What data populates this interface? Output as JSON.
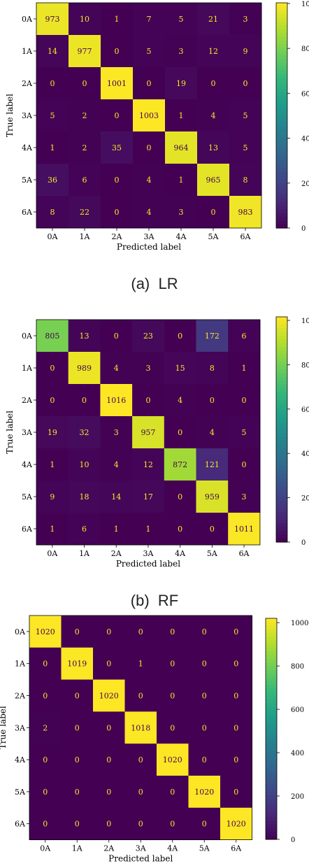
{
  "captions": [
    "(a)  LR",
    "(b)  RF",
    ""
  ],
  "colorscale": [
    "#440154",
    "#482878",
    "#3e4989",
    "#31688e",
    "#26828e",
    "#1f9e89",
    "#35b779",
    "#6ece58",
    "#b5de2b",
    "#fde725"
  ],
  "text_colors": {
    "on_dark": "#fde725",
    "on_light": "#440154"
  },
  "chart_data": [
    {
      "type": "heatmap",
      "title": "",
      "xlabel": "Predicted label",
      "ylabel": "True label",
      "x_labels": [
        "0A",
        "1A",
        "2A",
        "3A",
        "4A",
        "5A",
        "6A"
      ],
      "y_labels": [
        "0A",
        "1A",
        "2A",
        "3A",
        "4A",
        "5A",
        "6A"
      ],
      "matrix": [
        [
          973,
          10,
          1,
          7,
          5,
          21,
          3
        ],
        [
          14,
          977,
          0,
          5,
          3,
          12,
          9
        ],
        [
          0,
          0,
          1001,
          0,
          19,
          0,
          0
        ],
        [
          5,
          2,
          0,
          1003,
          1,
          4,
          5
        ],
        [
          1,
          2,
          35,
          0,
          964,
          13,
          5
        ],
        [
          36,
          6,
          0,
          4,
          1,
          965,
          8
        ],
        [
          8,
          22,
          0,
          4,
          3,
          0,
          983
        ]
      ],
      "vmax": 1003,
      "colorbar_ticks": [
        {
          "label": "0",
          "value": 0
        },
        {
          "label": "200",
          "value": 200
        },
        {
          "label": "400",
          "value": 400
        },
        {
          "label": "600",
          "value": 600
        },
        {
          "label": "800",
          "value": 800
        },
        {
          "label": "1000",
          "value": 1000
        }
      ]
    },
    {
      "type": "heatmap",
      "title": "",
      "xlabel": "Predicted label",
      "ylabel": "True label",
      "x_labels": [
        "0A",
        "1A",
        "2A",
        "3A",
        "4A",
        "5A",
        "6A"
      ],
      "y_labels": [
        "0A",
        "1A",
        "2A",
        "3A",
        "4A",
        "5A",
        "6A"
      ],
      "matrix": [
        [
          805,
          13,
          0,
          23,
          0,
          172,
          6
        ],
        [
          0,
          989,
          4,
          3,
          15,
          8,
          1
        ],
        [
          0,
          0,
          1016,
          0,
          4,
          0,
          0
        ],
        [
          19,
          32,
          3,
          957,
          0,
          4,
          5
        ],
        [
          1,
          10,
          4,
          12,
          872,
          121,
          0
        ],
        [
          9,
          18,
          14,
          17,
          0,
          959,
          3
        ],
        [
          1,
          6,
          1,
          1,
          0,
          0,
          1011
        ]
      ],
      "vmax": 1016,
      "colorbar_ticks": [
        {
          "label": "0",
          "value": 0
        },
        {
          "label": "200",
          "value": 200
        },
        {
          "label": "400",
          "value": 400
        },
        {
          "label": "600",
          "value": 600
        },
        {
          "label": "800",
          "value": 800
        },
        {
          "label": "1000",
          "value": 1000
        }
      ]
    },
    {
      "type": "heatmap",
      "title": "",
      "xlabel": "Predicted label",
      "ylabel": "True label",
      "x_labels": [
        "0A",
        "1A",
        "2A",
        "3A",
        "4A",
        "5A",
        "6A"
      ],
      "y_labels": [
        "0A",
        "1A",
        "2A",
        "3A",
        "4A",
        "5A",
        "6A"
      ],
      "matrix": [
        [
          1020,
          0,
          0,
          0,
          0,
          0,
          0
        ],
        [
          0,
          1019,
          0,
          1,
          0,
          0,
          0
        ],
        [
          0,
          0,
          1020,
          0,
          0,
          0,
          0
        ],
        [
          2,
          0,
          0,
          1018,
          0,
          0,
          0
        ],
        [
          0,
          0,
          0,
          0,
          1020,
          0,
          0
        ],
        [
          0,
          0,
          0,
          0,
          0,
          1020,
          0
        ],
        [
          0,
          0,
          0,
          0,
          0,
          0,
          1020
        ]
      ],
      "vmax": 1020,
      "colorbar_ticks": [
        {
          "label": "0",
          "value": 0
        },
        {
          "label": "200",
          "value": 200
        },
        {
          "label": "400",
          "value": 400
        },
        {
          "label": "600",
          "value": 600
        },
        {
          "label": "800",
          "value": 800
        },
        {
          "label": "1000",
          "value": 1000
        }
      ]
    }
  ]
}
